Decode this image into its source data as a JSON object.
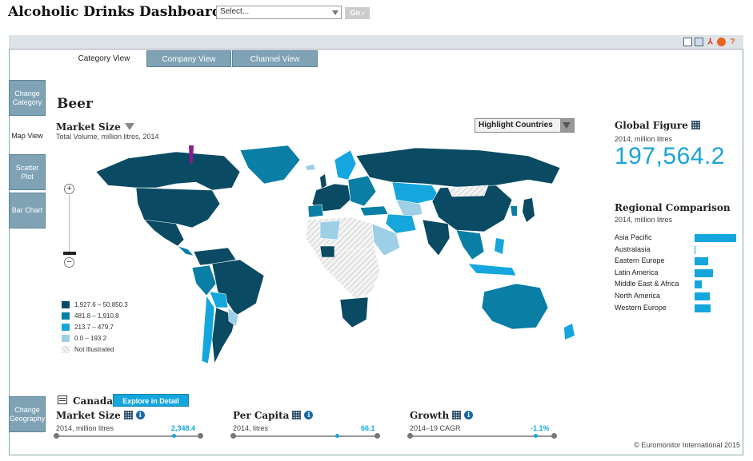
{
  "header": {
    "title": "Alcoholic Drinks Dashboard",
    "select_value": "Select...",
    "go_label": "Go ›"
  },
  "tabs": [
    {
      "label": "Category View",
      "active": true
    },
    {
      "label": "Company View",
      "active": false
    },
    {
      "label": "Channel View",
      "active": false
    }
  ],
  "side": {
    "change_category": "Change Category",
    "map_view": "Map View",
    "scatter_plot": "Scatter Plot",
    "bar_chart": "Bar Chart",
    "change_geography": "Change Geography"
  },
  "category": "Beer",
  "market_size": {
    "title": "Market Size",
    "subtitle": "Total Volume, million litres, 2014"
  },
  "highlight_label": "Highlight Countries",
  "global_figure": {
    "title": "Global Figure",
    "subtitle": "2014, million litres",
    "value": "197,564.2"
  },
  "regional": {
    "title": "Regional Comparison",
    "subtitle": "2014, million litres",
    "rows": [
      {
        "label": "Asia Pacific",
        "share": 1.0
      },
      {
        "label": "Australasia",
        "share": 0.02
      },
      {
        "label": "Eastern Europe",
        "share": 0.32
      },
      {
        "label": "Latin America",
        "share": 0.44
      },
      {
        "label": "Middle East & Africa",
        "share": 0.18
      },
      {
        "label": "North America",
        "share": 0.36
      },
      {
        "label": "Western Europe",
        "share": 0.38
      }
    ]
  },
  "legend": [
    {
      "label": "1,927.6 – 50,850.3",
      "color": "#0b4a63"
    },
    {
      "label": "481.8 – 1,910.8",
      "color": "#0a7ea4"
    },
    {
      "label": "213.7 – 479.7",
      "color": "#14a6dc"
    },
    {
      "label": "0.0 – 193.2",
      "color": "#9dcfe6"
    },
    {
      "label": "Not Illustrated",
      "color": "hatch"
    }
  ],
  "country": {
    "name": "Canada",
    "explore_label": "Explore in Detail"
  },
  "metrics": [
    {
      "title": "Market Size",
      "subtitle": "2014, million litres",
      "value": "2,348.4"
    },
    {
      "title": "Per Capita",
      "subtitle": "2014, litres",
      "value": "66.1"
    },
    {
      "title": "Growth",
      "subtitle": "2014–19 CAGR",
      "value": "-1.1%"
    }
  ],
  "copyright": "© Euromonitor International 2015",
  "toolbar_icons": [
    "print-icon",
    "image-export-icon",
    "pdf-icon",
    "ppt-icon",
    "help-icon"
  ],
  "toolbar_help": "?"
}
